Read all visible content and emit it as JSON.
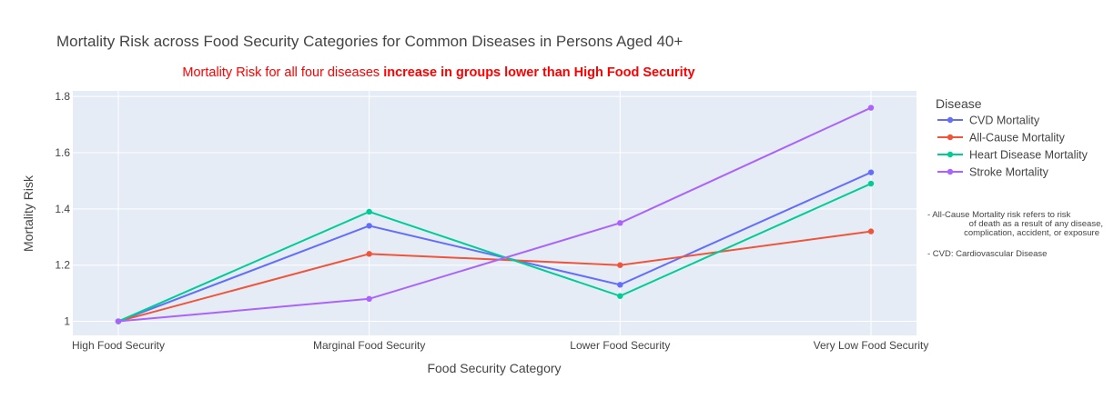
{
  "chart_data": {
    "type": "line",
    "title": "Mortality Risk across Food Security Categories for Common Diseases in Persons Aged 40+",
    "subtitle_normal": "Mortality Risk for all four diseases ",
    "subtitle_bold": "increase in groups lower than High Food Security",
    "xlabel": "Food Security Category",
    "ylabel": "Mortality Risk",
    "categories": [
      "High Food Security",
      "Marginal Food Security",
      "Lower Food Security",
      "Very Low Food Security"
    ],
    "ylim": [
      0.95,
      1.82
    ],
    "yticks": [
      1,
      1.2,
      1.4,
      1.6,
      1.8
    ],
    "ytick_labels": [
      "1",
      "1.2",
      "1.4",
      "1.6",
      "1.8"
    ],
    "grid": true,
    "legend_title": "Disease",
    "legend_position": "right",
    "series": [
      {
        "name": "CVD Mortality",
        "color": "#636efa",
        "values": [
          1.0,
          1.34,
          1.13,
          1.53
        ]
      },
      {
        "name": "All-Cause Mortality",
        "color": "#ef553b",
        "values": [
          1.0,
          1.24,
          1.2,
          1.32
        ]
      },
      {
        "name": "Heart Disease Mortality",
        "color": "#00cc96",
        "values": [
          1.0,
          1.39,
          1.09,
          1.49
        ]
      },
      {
        "name": "Stroke Mortality",
        "color": "#ab63fa",
        "values": [
          1.0,
          1.08,
          1.35,
          1.76
        ]
      }
    ],
    "notes": [
      "- All-Cause Mortality risk refers to risk",
      "of death as a result of any disease,",
      "complication, accident, or exposure",
      "- CVD: Cardiovascular Disease"
    ]
  }
}
